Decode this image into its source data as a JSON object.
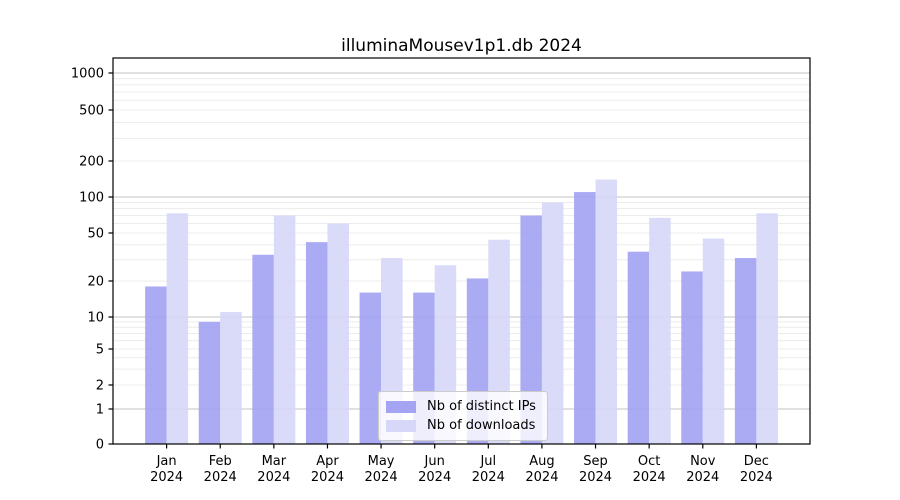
{
  "chart_data": {
    "type": "bar",
    "title": "illuminaMousev1p1.db 2024",
    "xlabel": "",
    "ylabel": "",
    "x_categories": [
      "Jan",
      "Feb",
      "Mar",
      "Apr",
      "May",
      "Jun",
      "Jul",
      "Aug",
      "Sep",
      "Oct",
      "Nov",
      "Dec"
    ],
    "x_category_year": "2024",
    "series": [
      {
        "name": "Nb of distinct IPs",
        "color": "#a4a4f3",
        "values": [
          18,
          9,
          33,
          42,
          16,
          16,
          21,
          70,
          110,
          35,
          24,
          31
        ]
      },
      {
        "name": "Nb of downloads",
        "color": "#d7d7f9",
        "values": [
          73,
          11,
          70,
          60,
          31,
          27,
          44,
          90,
          140,
          67,
          45,
          73
        ]
      }
    ],
    "y_axis": {
      "scale": "symlog",
      "tick_values": [
        0,
        1,
        2,
        5,
        10,
        20,
        50,
        100,
        200,
        500,
        1000
      ],
      "tick_labels": [
        "0",
        "1",
        "2",
        "5",
        "10",
        "20",
        "50",
        "100",
        "200",
        "500",
        "1000"
      ],
      "major_grid_values": [
        1,
        10,
        100,
        1000
      ],
      "minor_grid_base": [
        2,
        3,
        4,
        5,
        6,
        7,
        8,
        9
      ],
      "grid_major_color": "#c3c3c3",
      "grid_minor_color": "#ececec"
    },
    "legend_position": "lower center",
    "background_color": "#ffffff",
    "axis_color": "#000000"
  }
}
